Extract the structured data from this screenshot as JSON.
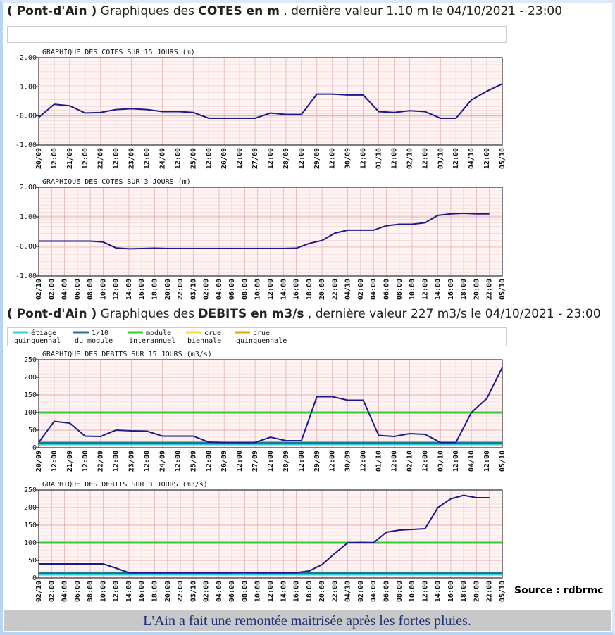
{
  "headers": [
    [
      {
        "text": "( Pont-d'Ain )",
        "bold": true
      },
      {
        "text": " Graphiques des "
      },
      {
        "text": "COTES en m",
        "bold": true
      },
      {
        "text": " , dernière valeur 1.10 m le 04/10/2021 - 23:00"
      }
    ],
    [
      {
        "text": "( Pont-d'Ain )",
        "bold": true
      },
      {
        "text": " Graphiques des "
      },
      {
        "text": "DEBITS en m3/s",
        "bold": true
      },
      {
        "text": " , dernière valeur 227 m3/s le 04/10/2021 - 23:00"
      }
    ]
  ],
  "legend": [
    {
      "lines": [
        "étiage",
        "quinquennal"
      ],
      "color": "#33ccdd"
    },
    {
      "lines": [
        "1/10",
        "du module"
      ],
      "color": "#1a7a8a"
    },
    {
      "lines": [
        "module",
        "interannuel"
      ],
      "color": "#33cc33"
    },
    {
      "lines": [
        "crue",
        "biennale"
      ],
      "color": "#f0e040"
    },
    {
      "lines": [
        "crue",
        "quinquennale"
      ],
      "color": "#ddaa00"
    }
  ],
  "chart_data": [
    {
      "type": "line",
      "title": "GRAPHIQUE DES COTES SUR 15 JOURS (m)",
      "color": "#1a1a8a",
      "categories": [
        "20/09",
        "12:00",
        "21/09",
        "12:00",
        "22/09",
        "12:00",
        "23/09",
        "12:00",
        "24/09",
        "12:00",
        "25/09",
        "12:00",
        "26/09",
        "12:00",
        "27/09",
        "12:00",
        "28/09",
        "12:00",
        "29/09",
        "12:00",
        "30/09",
        "12:00",
        "01/10",
        "12:00",
        "02/10",
        "12:00",
        "03/10",
        "12:00",
        "04/10",
        "12:00",
        "05/10"
      ],
      "values": [
        -0.05,
        0.4,
        0.35,
        0.1,
        0.12,
        0.22,
        0.25,
        0.22,
        0.15,
        0.15,
        0.12,
        -0.08,
        -0.08,
        -0.08,
        -0.08,
        0.1,
        0.05,
        0.05,
        0.75,
        0.75,
        0.72,
        0.72,
        0.15,
        0.12,
        0.18,
        0.15,
        -0.08,
        -0.08,
        0.55,
        0.85,
        1.1
      ],
      "ylim": [
        -1,
        2
      ],
      "yticks": [
        {
          "value": 2,
          "label": "2.00"
        },
        {
          "value": 1,
          "label": "1.00"
        },
        {
          "value": 0,
          "label": "-0.00"
        },
        {
          "value": -1,
          "label": "-1.00"
        }
      ],
      "grid": true
    },
    {
      "type": "line",
      "title": "GRAPHIQUE DES COTES SUR 3 JOURS (m)",
      "color": "#1a1a8a",
      "categories": [
        "02/10",
        "02:00",
        "04:00",
        "06:00",
        "08:00",
        "10:00",
        "12:00",
        "14:00",
        "16:00",
        "18:00",
        "20:00",
        "22:00",
        "03/10",
        "02:00",
        "04:00",
        "06:00",
        "08:00",
        "10:00",
        "12:00",
        "14:00",
        "16:00",
        "18:00",
        "20:00",
        "22:00",
        "04/10",
        "02:00",
        "04:00",
        "06:00",
        "08:00",
        "10:00",
        "12:00",
        "14:00",
        "16:00",
        "18:00",
        "20:00",
        "22:00",
        "05/10"
      ],
      "values": [
        0.18,
        0.18,
        0.18,
        0.18,
        0.18,
        0.15,
        -0.05,
        -0.08,
        -0.07,
        -0.06,
        -0.07,
        -0.07,
        -0.07,
        -0.07,
        -0.07,
        -0.07,
        -0.07,
        -0.07,
        -0.07,
        -0.07,
        -0.06,
        0.1,
        0.2,
        0.45,
        0.55,
        0.55,
        0.55,
        0.7,
        0.75,
        0.75,
        0.8,
        1.05,
        1.1,
        1.12,
        1.1,
        1.1,
        null
      ],
      "ylim": [
        -1,
        2
      ],
      "yticks": [
        {
          "value": 2,
          "label": "2.00"
        },
        {
          "value": 1,
          "label": "1.00"
        },
        {
          "value": 0,
          "label": "-0.00"
        },
        {
          "value": -1,
          "label": "-1.00"
        }
      ],
      "grid": true
    },
    {
      "type": "line",
      "title": "GRAPHIQUE DES DEBITS SUR 15 JOURS (m3/s)",
      "color": "#1a1a8a",
      "categories": [
        "20/09",
        "12:00",
        "21/09",
        "12:00",
        "22/09",
        "12:00",
        "23/09",
        "12:00",
        "24/09",
        "12:00",
        "25/09",
        "12:00",
        "26/09",
        "12:00",
        "27/09",
        "12:00",
        "28/09",
        "12:00",
        "29/09",
        "12:00",
        "30/09",
        "12:00",
        "01/10",
        "12:00",
        "02/10",
        "12:00",
        "03/10",
        "12:00",
        "04/10",
        "12:00",
        "05/10"
      ],
      "values": [
        15,
        75,
        70,
        33,
        32,
        50,
        48,
        47,
        33,
        33,
        33,
        16,
        15,
        15,
        15,
        30,
        20,
        20,
        145,
        145,
        135,
        135,
        35,
        32,
        40,
        38,
        15,
        15,
        100,
        140,
        228
      ],
      "reference_lines": [
        {
          "value": 10,
          "color": "#33ccdd"
        },
        {
          "value": 14,
          "color": "#1a7a8a"
        },
        {
          "value": 100,
          "color": "#33cc33"
        }
      ],
      "ylim": [
        0,
        250
      ],
      "yticks": [
        0,
        50,
        100,
        150,
        200,
        250
      ],
      "grid": true
    },
    {
      "type": "line",
      "title": "GRAPHIQUE DES DEBITS SUR 3 JOURS (m3/s)",
      "color": "#1a1a8a",
      "categories": [
        "02/10",
        "02:00",
        "04:00",
        "06:00",
        "08:00",
        "10:00",
        "12:00",
        "14:00",
        "16:00",
        "18:00",
        "20:00",
        "22:00",
        "03/10",
        "02:00",
        "04:00",
        "06:00",
        "08:00",
        "10:00",
        "12:00",
        "14:00",
        "16:00",
        "18:00",
        "20:00",
        "22:00",
        "04/10",
        "02:00",
        "04:00",
        "06:00",
        "08:00",
        "10:00",
        "12:00",
        "14:00",
        "16:00",
        "18:00",
        "20:00",
        "22:00",
        "05/10"
      ],
      "values": [
        40,
        40,
        40,
        40,
        40,
        40,
        28,
        15,
        15,
        15,
        15,
        15,
        15,
        15,
        15,
        15,
        16,
        15,
        15,
        15,
        15,
        20,
        38,
        70,
        100,
        101,
        100,
        130,
        136,
        138,
        140,
        200,
        225,
        235,
        228,
        228,
        null
      ],
      "reference_lines": [
        {
          "value": 10,
          "color": "#33ccdd"
        },
        {
          "value": 14,
          "color": "#1a7a8a"
        },
        {
          "value": 100,
          "color": "#33cc33"
        }
      ],
      "ylim": [
        0,
        250
      ],
      "yticks": [
        0,
        50,
        100,
        150,
        200,
        250
      ],
      "grid": true
    }
  ],
  "source": "Source : rdbrmc",
  "caption": "L'Ain a fait une remontée maitrisée après les fortes pluies."
}
